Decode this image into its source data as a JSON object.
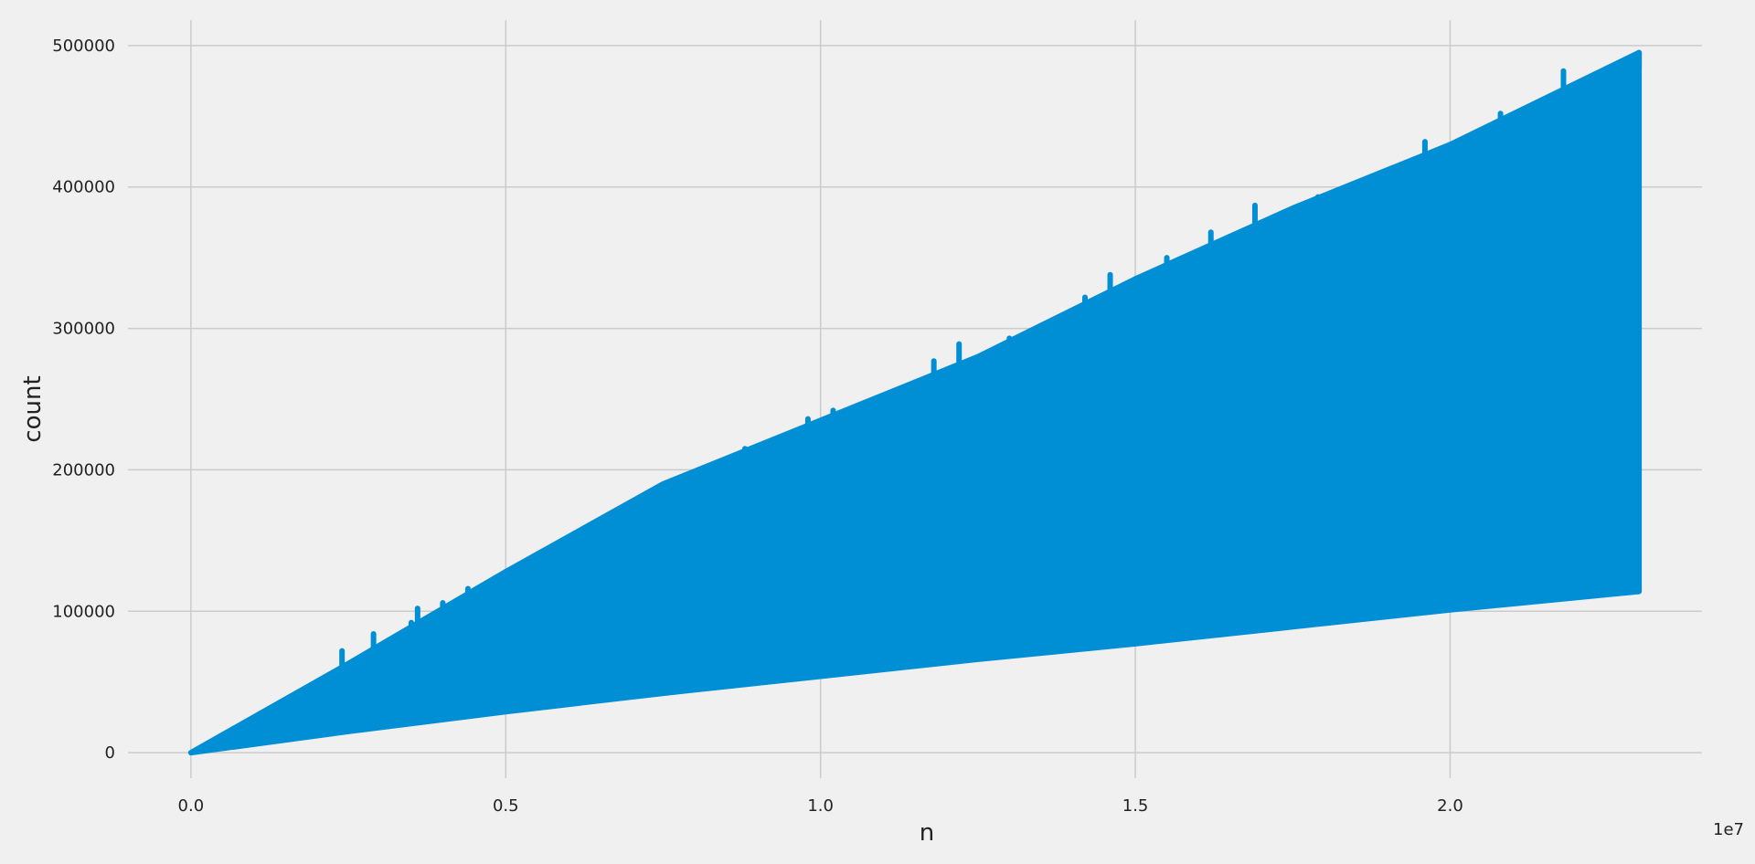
{
  "chart_data": {
    "type": "area",
    "title": "",
    "xlabel": "n",
    "ylabel": "count",
    "x_offset_label": "1e7",
    "xlim": [
      -0.1,
      2.4
    ],
    "ylim": [
      -18000,
      518000
    ],
    "x_ticks": [
      0.0,
      0.5,
      1.0,
      1.5,
      2.0
    ],
    "x_tick_labels": [
      "0.0",
      "0.5",
      "1.0",
      "1.5",
      "2.0"
    ],
    "y_ticks": [
      0,
      100000,
      200000,
      300000,
      400000,
      500000
    ],
    "y_tick_labels": [
      "0",
      "100000",
      "200000",
      "300000",
      "400000",
      "500000"
    ],
    "grid": true,
    "color": "#008fd5",
    "background": "#f0f0f0",
    "series": [
      {
        "x": [
          0.0,
          0.25,
          0.5,
          0.75,
          1.0,
          1.25,
          1.5,
          1.75,
          2.0,
          2.3
        ],
        "upper_values": [
          0,
          63000,
          128000,
          190000,
          235000,
          280000,
          335000,
          385000,
          430000,
          495000
        ],
        "lower_values": [
          0,
          15000,
          29000,
          42000,
          54000,
          66000,
          77000,
          89000,
          101000,
          114000
        ]
      }
    ],
    "upper_peaks": [
      [
        0.24,
        72000
      ],
      [
        0.29,
        84000
      ],
      [
        0.35,
        92000
      ],
      [
        0.36,
        102000
      ],
      [
        0.4,
        106000
      ],
      [
        0.44,
        116000
      ],
      [
        0.5,
        128000
      ],
      [
        0.56,
        140000
      ],
      [
        0.6,
        150000
      ],
      [
        0.65,
        158000
      ],
      [
        0.7,
        168000
      ],
      [
        0.73,
        185000
      ],
      [
        0.78,
        192000
      ],
      [
        0.84,
        205000
      ],
      [
        0.88,
        215000
      ],
      [
        0.94,
        220000
      ],
      [
        0.98,
        236000
      ],
      [
        1.02,
        242000
      ],
      [
        1.08,
        248000
      ],
      [
        1.15,
        262000
      ],
      [
        1.18,
        277000
      ],
      [
        1.22,
        289000
      ],
      [
        1.3,
        293000
      ],
      [
        1.35,
        302000
      ],
      [
        1.42,
        322000
      ],
      [
        1.46,
        338000
      ],
      [
        1.5,
        335000
      ],
      [
        1.55,
        350000
      ],
      [
        1.62,
        368000
      ],
      [
        1.66,
        364000
      ],
      [
        1.69,
        387000
      ],
      [
        1.74,
        382000
      ],
      [
        1.79,
        393000
      ],
      [
        1.85,
        402000
      ],
      [
        1.9,
        410000
      ],
      [
        1.96,
        432000
      ],
      [
        2.0,
        430000
      ],
      [
        2.04,
        438000
      ],
      [
        2.08,
        452000
      ],
      [
        2.14,
        456000
      ],
      [
        2.18,
        482000
      ],
      [
        2.22,
        474000
      ],
      [
        2.26,
        476000
      ],
      [
        2.29,
        478000
      ],
      [
        2.3,
        495000
      ]
    ]
  }
}
